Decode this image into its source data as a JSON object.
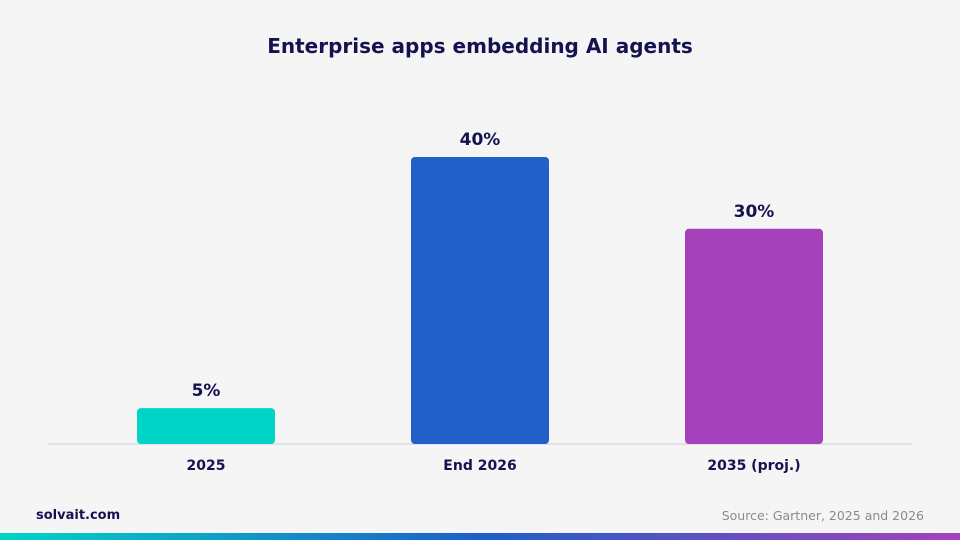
{
  "chart_data": {
    "type": "bar",
    "title": "Enterprise apps embedding AI agents",
    "categories": [
      "2025",
      "End 2026",
      "2035 (proj.)"
    ],
    "values": [
      5,
      40,
      30
    ],
    "value_labels": [
      "5%",
      "40%",
      "30%"
    ],
    "colors": [
      "#00d4c6",
      "#2060c8",
      "#a542bb"
    ],
    "ylim": [
      0,
      40
    ],
    "grid": false,
    "legend": "none",
    "xlabel": "",
    "ylabel": ""
  },
  "footer": {
    "brand": "solvait.com",
    "source": "Source: Gartner, 2025 and 2026"
  }
}
